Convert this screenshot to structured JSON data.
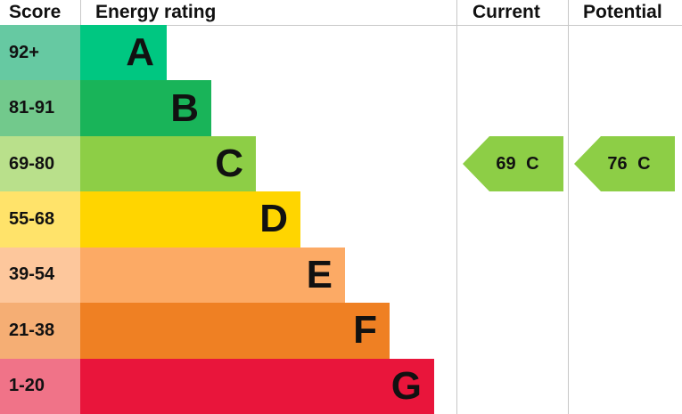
{
  "header": {
    "score": "Score",
    "energy_rating": "Energy rating",
    "current": "Current",
    "potential": "Potential"
  },
  "chart_data": {
    "type": "table",
    "bands": [
      {
        "letter": "A",
        "range": "92+",
        "color": "#00c781",
        "score_color": "#66c9a2"
      },
      {
        "letter": "B",
        "range": "81-91",
        "color": "#19b459",
        "score_color": "#72c98c"
      },
      {
        "letter": "C",
        "range": "69-80",
        "color": "#8dce46",
        "score_color": "#b9e08b"
      },
      {
        "letter": "D",
        "range": "55-68",
        "color": "#ffd500",
        "score_color": "#ffe36a"
      },
      {
        "letter": "E",
        "range": "39-54",
        "color": "#fcaa65",
        "score_color": "#fdc79c"
      },
      {
        "letter": "F",
        "range": "21-38",
        "color": "#ef8023",
        "score_color": "#f5ae74"
      },
      {
        "letter": "G",
        "range": "1-20",
        "color": "#e9153b",
        "score_color": "#f07388"
      }
    ],
    "current": {
      "value": 69,
      "band": "C",
      "label": "69 C"
    },
    "potential": {
      "value": 76,
      "band": "C",
      "label": "76 C"
    }
  }
}
